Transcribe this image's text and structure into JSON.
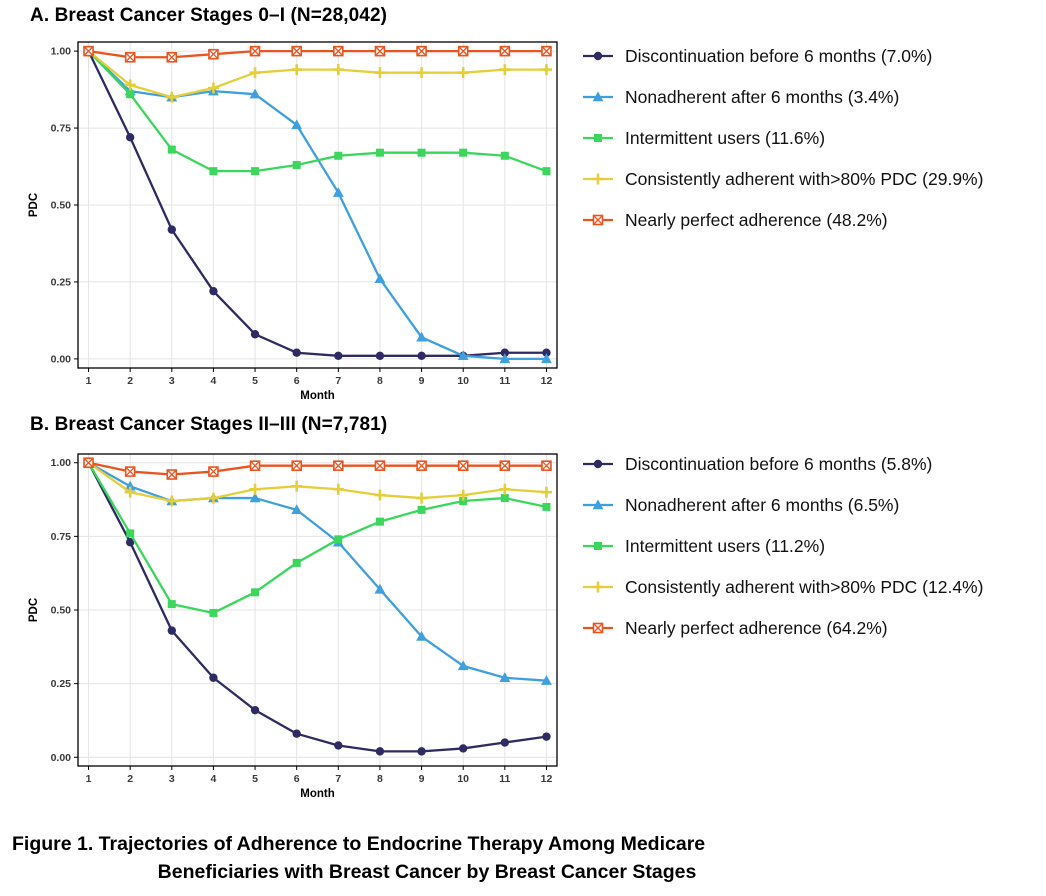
{
  "figure": {
    "caption_line1": "Figure 1. Trajectories of Adherence to Endocrine Therapy Among Medicare",
    "caption_line2": "Beneficiaries with Breast Cancer by Breast Cancer Stages"
  },
  "style": {
    "grid_color": "#e4e4e4",
    "border_color": "#000000",
    "tick_color": "#3a3a3a",
    "background": "#ffffff"
  },
  "chart_data": [
    {
      "type": "line",
      "title": "A. Breast Cancer Stages 0–I (N=28,042)",
      "xlabel": "Month",
      "ylabel": "PDC",
      "x": [
        1,
        2,
        3,
        4,
        5,
        6,
        7,
        8,
        9,
        10,
        11,
        12
      ],
      "ylim": [
        0,
        1
      ],
      "yticks": [
        0,
        0.25,
        0.5,
        0.75,
        1
      ],
      "ytick_labels": [
        "0.00",
        "0.25",
        "0.50",
        "0.75",
        "1.00"
      ],
      "grid": true,
      "legend_position": "right",
      "series": [
        {
          "name": "Discontinuation before 6 months (7.0%)",
          "marker": "circle",
          "color": "#2e2a62",
          "values": [
            1.0,
            0.72,
            0.42,
            0.22,
            0.08,
            0.02,
            0.01,
            0.01,
            0.01,
            0.01,
            0.02,
            0.02
          ]
        },
        {
          "name": "Nonadherent after 6 months (3.4%)",
          "marker": "triangle",
          "color": "#3f9fdf",
          "values": [
            1.0,
            0.87,
            0.85,
            0.87,
            0.86,
            0.76,
            0.54,
            0.26,
            0.07,
            0.01,
            0.0,
            0.0
          ]
        },
        {
          "name": "Intermittent users (11.6%)",
          "marker": "square",
          "color": "#3bd65c",
          "values": [
            1.0,
            0.86,
            0.68,
            0.61,
            0.61,
            0.63,
            0.66,
            0.67,
            0.67,
            0.67,
            0.66,
            0.61
          ]
        },
        {
          "name": "Consistently adherent with>80% PDC (29.9%)",
          "marker": "plus",
          "color": "#e4cf3b",
          "values": [
            1.0,
            0.89,
            0.85,
            0.88,
            0.93,
            0.94,
            0.94,
            0.93,
            0.93,
            0.93,
            0.94,
            0.94
          ]
        },
        {
          "name": "Nearly perfect adherence (48.2%)",
          "marker": "crossed-square",
          "color": "#ea5420",
          "values": [
            1.0,
            0.98,
            0.98,
            0.99,
            1.0,
            1.0,
            1.0,
            1.0,
            1.0,
            1.0,
            1.0,
            1.0
          ]
        }
      ]
    },
    {
      "type": "line",
      "title": "B. Breast Cancer Stages II–III (N=7,781)",
      "xlabel": "Month",
      "ylabel": "PDC",
      "x": [
        1,
        2,
        3,
        4,
        5,
        6,
        7,
        8,
        9,
        10,
        11,
        12
      ],
      "ylim": [
        0,
        1
      ],
      "yticks": [
        0,
        0.25,
        0.5,
        0.75,
        1
      ],
      "ytick_labels": [
        "0.00",
        "0.25",
        "0.50",
        "0.75",
        "1.00"
      ],
      "grid": true,
      "legend_position": "right",
      "series": [
        {
          "name": "Discontinuation before 6 months (5.8%)",
          "marker": "circle",
          "color": "#2e2a62",
          "values": [
            1.0,
            0.73,
            0.43,
            0.27,
            0.16,
            0.08,
            0.04,
            0.02,
            0.02,
            0.03,
            0.05,
            0.07
          ]
        },
        {
          "name": "Nonadherent after 6 months (6.5%)",
          "marker": "triangle",
          "color": "#3f9fdf",
          "values": [
            1.0,
            0.92,
            0.87,
            0.88,
            0.88,
            0.84,
            0.73,
            0.57,
            0.41,
            0.31,
            0.27,
            0.26
          ]
        },
        {
          "name": "Intermittent users (11.2%)",
          "marker": "square",
          "color": "#3bd65c",
          "values": [
            1.0,
            0.76,
            0.52,
            0.49,
            0.56,
            0.66,
            0.74,
            0.8,
            0.84,
            0.87,
            0.88,
            0.85
          ]
        },
        {
          "name": "Consistently adherent with>80% PDC (12.4%)",
          "marker": "plus",
          "color": "#e4cf3b",
          "values": [
            1.0,
            0.9,
            0.87,
            0.88,
            0.91,
            0.92,
            0.91,
            0.89,
            0.88,
            0.89,
            0.91,
            0.9
          ]
        },
        {
          "name": "Nearly perfect adherence (64.2%)",
          "marker": "crossed-square",
          "color": "#ea5420",
          "values": [
            1.0,
            0.97,
            0.96,
            0.97,
            0.99,
            0.99,
            0.99,
            0.99,
            0.99,
            0.99,
            0.99,
            0.99
          ]
        }
      ]
    }
  ]
}
